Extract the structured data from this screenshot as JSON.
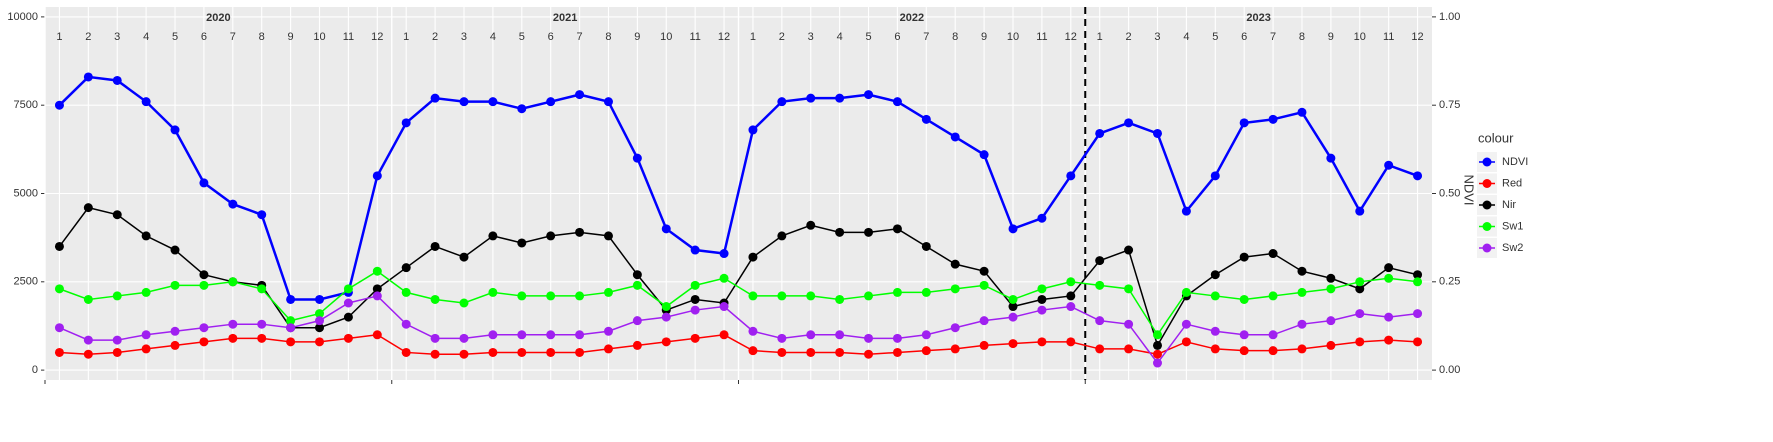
{
  "chart_data": {
    "type": "line",
    "x_years": [
      "2020",
      "2021",
      "2022",
      "2023"
    ],
    "x_months": [
      1,
      2,
      3,
      4,
      5,
      6,
      7,
      8,
      9,
      10,
      11,
      12
    ],
    "x": [
      "2020-01",
      "2020-02",
      "2020-03",
      "2020-04",
      "2020-05",
      "2020-06",
      "2020-07",
      "2020-08",
      "2020-09",
      "2020-10",
      "2020-11",
      "2020-12",
      "2021-01",
      "2021-02",
      "2021-03",
      "2021-04",
      "2021-05",
      "2021-06",
      "2021-07",
      "2021-08",
      "2021-09",
      "2021-10",
      "2021-11",
      "2021-12",
      "2022-01",
      "2022-02",
      "2022-03",
      "2022-04",
      "2022-05",
      "2022-06",
      "2022-07",
      "2022-08",
      "2022-09",
      "2022-10",
      "2022-11",
      "2022-12",
      "2023-01",
      "2023-02",
      "2023-03",
      "2023-04",
      "2023-05",
      "2023-06",
      "2023-07",
      "2023-08",
      "2023-09",
      "2023-10",
      "2023-11",
      "2023-12"
    ],
    "dashed_line_year": "2023",
    "y2label": "NDVI",
    "ylim": [
      -280,
      10280
    ],
    "yticks": [
      0,
      2500,
      5000,
      7500,
      10000
    ],
    "y2lim": [
      -0.028,
      1.028
    ],
    "y2ticks": [
      {
        "value": 0,
        "label": "0.00"
      },
      {
        "value": 0.25,
        "label": "0.25"
      },
      {
        "value": 0.5,
        "label": "0.50"
      },
      {
        "value": 0.75,
        "label": "0.75"
      },
      {
        "value": 1,
        "label": "1.00"
      }
    ],
    "grid": true,
    "legend_title": "colour",
    "legend_position": "right",
    "series": [
      {
        "name": "NDVI",
        "color": "#0000ff",
        "axis": "y2",
        "values": [
          0.75,
          0.83,
          0.82,
          0.76,
          0.68,
          0.53,
          0.47,
          0.44,
          0.2,
          0.2,
          0.22,
          0.55,
          0.7,
          0.77,
          0.76,
          0.76,
          0.74,
          0.76,
          0.78,
          0.76,
          0.6,
          0.4,
          0.34,
          0.33,
          0.68,
          0.76,
          0.77,
          0.77,
          0.78,
          0.76,
          0.71,
          0.66,
          0.61,
          0.4,
          0.43,
          0.55,
          0.67,
          0.7,
          0.67,
          0.45,
          0.55,
          0.7,
          0.71,
          0.73,
          0.6,
          0.45,
          0.58,
          0.55
        ]
      },
      {
        "name": "Red",
        "color": "#ff0000",
        "values": [
          500,
          450,
          500,
          600,
          700,
          800,
          900,
          900,
          800,
          800,
          900,
          1000,
          500,
          450,
          450,
          500,
          500,
          500,
          500,
          600,
          700,
          800,
          900,
          1000,
          550,
          500,
          500,
          500,
          450,
          500,
          550,
          600,
          700,
          750,
          800,
          800,
          600,
          600,
          450,
          800,
          600,
          550,
          550,
          600,
          700,
          800,
          850,
          800
        ]
      },
      {
        "name": "Nir",
        "color": "#000000",
        "values": [
          3500,
          4600,
          4400,
          3800,
          3400,
          2700,
          2500,
          2400,
          1200,
          1200,
          1500,
          2300,
          2900,
          3500,
          3200,
          3800,
          3600,
          3800,
          3900,
          3800,
          2700,
          1700,
          2000,
          1900,
          3200,
          3800,
          4100,
          3900,
          3900,
          4000,
          3500,
          3000,
          2800,
          1800,
          2000,
          2100,
          3100,
          3400,
          700,
          2100,
          2700,
          3200,
          3300,
          2800,
          2600,
          2300,
          2900,
          2700
        ]
      },
      {
        "name": "Sw1",
        "color": "#00ff00",
        "values": [
          2300,
          2000,
          2100,
          2200,
          2400,
          2400,
          2500,
          2300,
          1400,
          1600,
          2300,
          2800,
          2200,
          2000,
          1900,
          2200,
          2100,
          2100,
          2100,
          2200,
          2400,
          1800,
          2400,
          2600,
          2100,
          2100,
          2100,
          2000,
          2100,
          2200,
          2200,
          2300,
          2400,
          2000,
          2300,
          2500,
          2400,
          2300,
          1000,
          2200,
          2100,
          2000,
          2100,
          2200,
          2300,
          2500,
          2600,
          2500
        ]
      },
      {
        "name": "Sw2",
        "color": "#a020f0",
        "values": [
          1200,
          850,
          850,
          1000,
          1100,
          1200,
          1300,
          1300,
          1200,
          1400,
          1900,
          2100,
          1300,
          900,
          900,
          1000,
          1000,
          1000,
          1000,
          1100,
          1400,
          1500,
          1700,
          1800,
          1100,
          900,
          1000,
          1000,
          900,
          900,
          1000,
          1200,
          1400,
          1500,
          1700,
          1800,
          1400,
          1300,
          200,
          1300,
          1100,
          1000,
          1000,
          1300,
          1400,
          1600,
          1500,
          1600
        ]
      }
    ]
  }
}
